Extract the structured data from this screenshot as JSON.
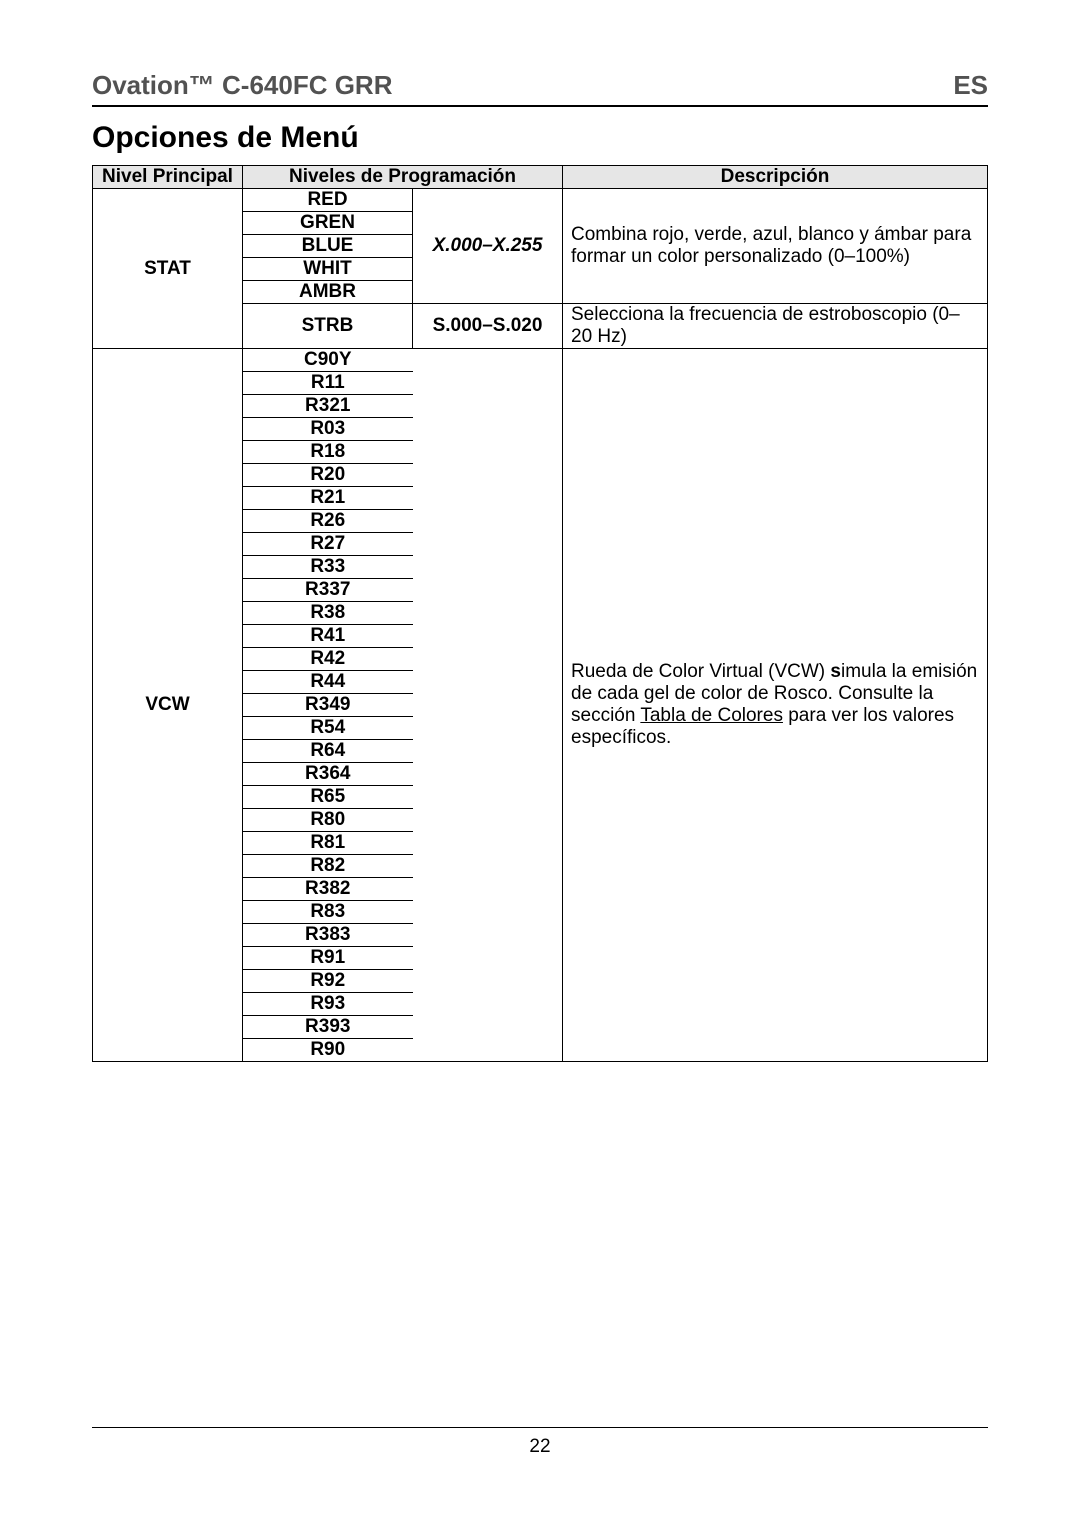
{
  "header": {
    "product": "Ovation™ C-640FC GRR",
    "lang": "ES"
  },
  "section_title": "Opciones de Menú",
  "columns": {
    "main": "Nivel Principal",
    "prog": "Niveles de Programación",
    "desc": "Descripción"
  },
  "stat_block": {
    "main": "STAT",
    "colors": [
      "RED",
      "GREN",
      "BLUE",
      "WHIT",
      "AMBR"
    ],
    "color_range": "X.000–X.255",
    "color_desc": "Combina rojo, verde, azul, blanco y ámbar para formar un color personalizado (0–100%)",
    "strb_label": "STRB",
    "strb_range": "S.000–S.020",
    "strb_desc": "Selecciona la frecuencia de estroboscopio (0–20 Hz)"
  },
  "vcw_block": {
    "main": "VCW",
    "codes": [
      "C90Y",
      "R11",
      "R321",
      "R03",
      "R18",
      "R20",
      "R21",
      "R26",
      "R27",
      "R33",
      "R337",
      "R38",
      "R41",
      "R42",
      "R44",
      "R349",
      "R54",
      "R64",
      "R364",
      "R65",
      "R80",
      "R81",
      "R82",
      "R382",
      "R83",
      "R383",
      "R91",
      "R92",
      "R93",
      "R393",
      "R90"
    ],
    "desc_l1": "Rueda de Color Virtual (VCW) ",
    "desc_sim_s": "s",
    "desc_sim_rest": "imula la emisión de cada gel de color de Rosco. Consulte la sección ",
    "desc_link": "Tabla de Colores",
    "desc_l3": " para ver los valores específicos."
  },
  "page_number": "22"
}
